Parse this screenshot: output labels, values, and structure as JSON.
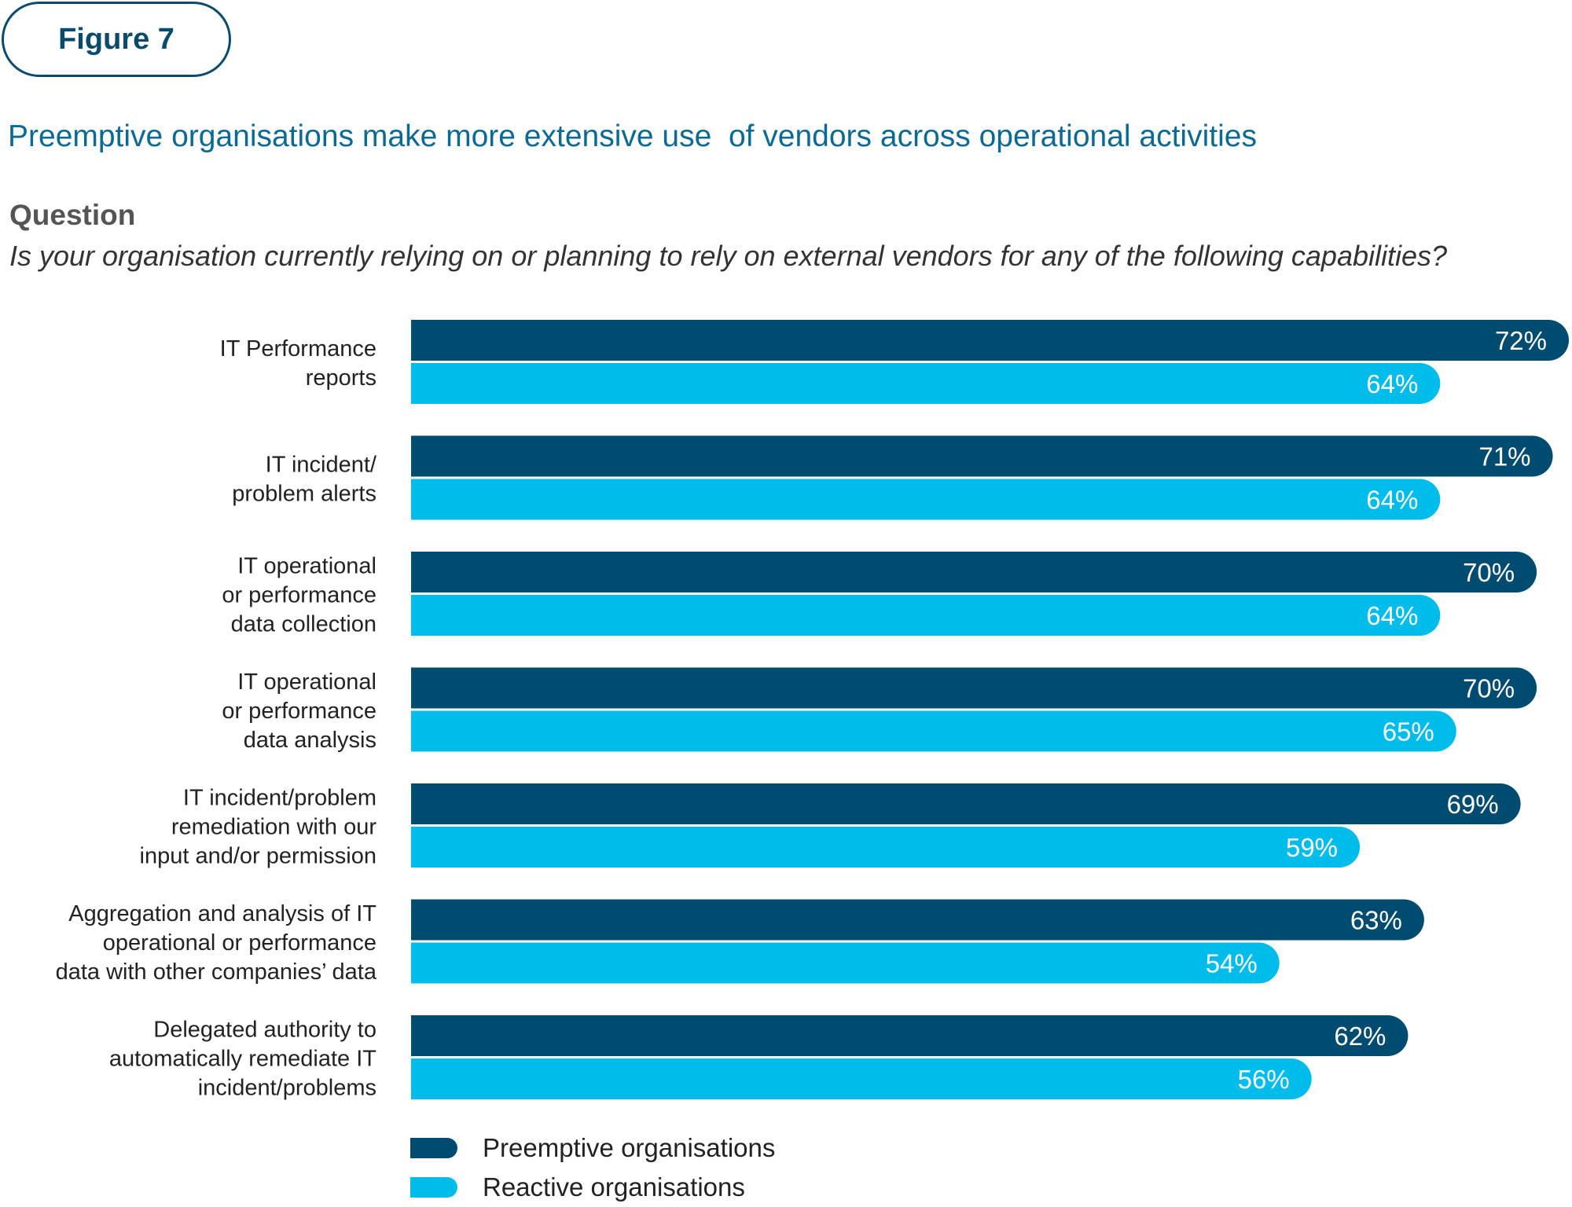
{
  "figure_label": "Figure 7",
  "headline": "Preemptive organisations make more extensive use  of vendors across operational activities",
  "question": {
    "label": "Question",
    "text": "Is your organisation currently relying on or planning to rely on external vendors for any of the following capabilities?"
  },
  "colors": {
    "preemptive": "#004b70",
    "reactive": "#00bceb",
    "label_text": "#222222"
  },
  "chart_data": {
    "type": "bar",
    "orientation": "horizontal",
    "categories": [
      [
        "IT Performance",
        "reports"
      ],
      [
        "IT incident/",
        "problem alerts"
      ],
      [
        "IT operational",
        "or performance",
        "data collection"
      ],
      [
        "IT operational",
        "or performance",
        "data analysis"
      ],
      [
        "IT incident/problem",
        "remediation with our",
        "input and/or permission"
      ],
      [
        "Aggregation and analysis of IT",
        "operational or performance",
        "data with other companies’ data"
      ],
      [
        "Delegated authority to",
        "automatically remediate IT",
        "incident/problems"
      ]
    ],
    "series": [
      {
        "name": "Preemptive organisations",
        "values": [
          72,
          71,
          70,
          70,
          69,
          63,
          62
        ],
        "labels": [
          "72%",
          "71%",
          "70%",
          "70%",
          "69%",
          "63%",
          "62%"
        ]
      },
      {
        "name": "Reactive organisations",
        "values": [
          64,
          64,
          64,
          65,
          59,
          54,
          56
        ],
        "labels": [
          "64%",
          "64%",
          "64%",
          "65%",
          "59%",
          "54%",
          "56%"
        ]
      }
    ],
    "value_unit": "%",
    "xlim": [
      0,
      72
    ],
    "legend_position": "bottom-left",
    "grid": false
  }
}
